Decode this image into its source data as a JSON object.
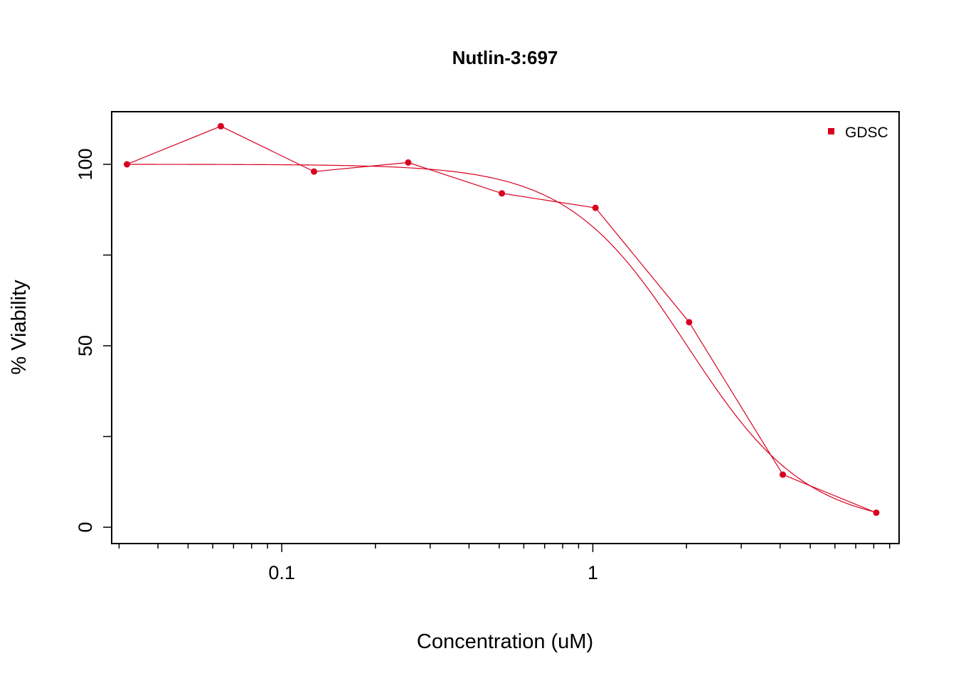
{
  "chart_data": {
    "type": "line",
    "title": "Nutlin-3:697",
    "xlabel": "Concentration (uM)",
    "ylabel": "% Viability",
    "x_scale": "log",
    "xlim": [
      0.0284,
      9.65
    ],
    "ylim": [
      -4.5,
      114.5
    ],
    "x_ticks_major": [
      0.1,
      1
    ],
    "x_tick_labels": [
      "0.1",
      "1"
    ],
    "x_ticks_minor": [
      0.03,
      0.04,
      0.05,
      0.06,
      0.07,
      0.08,
      0.09,
      0.2,
      0.3,
      0.4,
      0.5,
      0.6,
      0.7,
      0.8,
      0.9,
      2,
      3,
      4,
      5,
      6,
      7,
      8,
      9
    ],
    "y_ticks": [
      0,
      25,
      50,
      75,
      100
    ],
    "y_tick_labels": [
      "0",
      "",
      "50",
      "",
      "100"
    ],
    "grid": false,
    "legend": {
      "position": "top-right",
      "entries": [
        "GDSC"
      ]
    },
    "colors": {
      "series": "#d7001f",
      "axis": "#000000"
    },
    "series": [
      {
        "name": "GDSC",
        "x": [
          0.0318,
          0.0637,
          0.127,
          0.255,
          0.51,
          1.02,
          2.04,
          4.08,
          8.15
        ],
        "y": [
          100.0,
          110.5,
          98.0,
          100.5,
          92.0,
          88.0,
          56.5,
          14.5,
          4.0
        ]
      }
    ],
    "fit_curve": {
      "model": "hill",
      "top": 100,
      "bottom": 0,
      "ec50": 2.01,
      "hill_slope": 2.25
    }
  }
}
